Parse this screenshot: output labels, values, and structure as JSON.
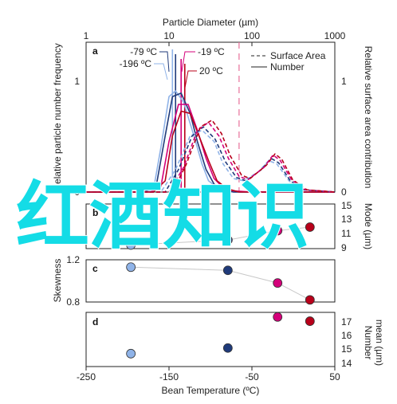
{
  "colors": {
    "axis": "#222222",
    "blue_dark": "#1f3a7a",
    "blue_light": "#8fb3e8",
    "magenta": "#d4007a",
    "red_dark": "#b8001a",
    "overlay_cyan": "#14dce6",
    "dash_pink": "#e8709a"
  },
  "overlay_text": "红酒知识",
  "chart_data": [
    {
      "panel": "a",
      "type": "line",
      "x_scale": "log",
      "xlabel_top": "Particle Diameter (µm)",
      "xlim": [
        1,
        1000
      ],
      "x_ticks": [
        "1",
        "10",
        "100",
        "1000"
      ],
      "ylabel_left": "Relative particle number frequency",
      "ylabel_right": "Relative surface area contribution",
      "y_ticks_left": [
        "0",
        "1"
      ],
      "y_ticks_right": [
        "0",
        "1"
      ],
      "legend": [
        "Surface Area",
        "Number"
      ],
      "legend_placement": "top-right",
      "temperature_labels": [
        "-79 ºC",
        "-196 ºC",
        "-19 ºC",
        "20 ºC"
      ],
      "vertical_marker_x": 70,
      "series": [
        {
          "name": "-196 ºC",
          "kind": "Number",
          "color": "blue_light",
          "x": [
            1,
            5,
            6.5,
            8,
            10,
            12,
            15,
            20,
            25,
            30,
            40,
            50,
            60,
            70,
            100,
            200,
            1000
          ],
          "y": [
            0,
            0,
            0.02,
            0.4,
            0.85,
            0.9,
            0.8,
            0.5,
            0.25,
            0.1,
            0.03,
            0.01,
            0,
            0,
            0,
            0,
            0
          ]
        },
        {
          "name": "-79 ºC",
          "kind": "Number",
          "color": "blue_dark",
          "x": [
            1,
            5,
            7,
            9,
            11,
            14,
            18,
            22,
            28,
            35,
            45,
            60,
            100,
            1000
          ],
          "y": [
            0,
            0,
            0.05,
            0.5,
            0.85,
            0.88,
            0.7,
            0.45,
            0.2,
            0.07,
            0.02,
            0,
            0,
            0
          ]
        },
        {
          "name": "-19 ºC",
          "kind": "Number",
          "color": "magenta",
          "x": [
            1,
            6,
            8,
            10,
            13,
            17,
            22,
            28,
            35,
            45,
            60,
            100,
            1000
          ],
          "y": [
            0,
            0,
            0.05,
            0.45,
            0.78,
            0.78,
            0.55,
            0.3,
            0.12,
            0.04,
            0.01,
            0,
            0
          ]
        },
        {
          "name": "20 ºC",
          "kind": "Number",
          "color": "red_dark",
          "x": [
            1,
            6.5,
            9,
            11,
            14,
            18,
            23,
            30,
            38,
            50,
            70,
            100,
            1000
          ],
          "y": [
            0,
            0,
            0.1,
            0.5,
            0.72,
            0.7,
            0.5,
            0.28,
            0.1,
            0.03,
            0,
            0,
            0
          ]
        },
        {
          "name": "-196 ºC",
          "kind": "Surface Area",
          "color": "blue_light",
          "x": [
            1,
            8,
            12,
            18,
            25,
            35,
            45,
            60,
            80,
            120,
            160,
            200,
            280,
            400,
            1000
          ],
          "y": [
            0,
            0,
            0.2,
            0.5,
            0.55,
            0.45,
            0.25,
            0.12,
            0.1,
            0.18,
            0.28,
            0.25,
            0.1,
            0.02,
            0
          ]
        },
        {
          "name": "-79 ºC",
          "kind": "Surface Area",
          "color": "blue_dark",
          "x": [
            1,
            9,
            13,
            19,
            26,
            36,
            48,
            65,
            85,
            130,
            170,
            210,
            290,
            420,
            1000
          ],
          "y": [
            0,
            0,
            0.2,
            0.5,
            0.58,
            0.47,
            0.27,
            0.13,
            0.1,
            0.2,
            0.3,
            0.26,
            0.1,
            0.02,
            0
          ]
        },
        {
          "name": "-19 ºC",
          "kind": "Surface Area",
          "color": "magenta",
          "x": [
            1,
            10,
            15,
            22,
            30,
            40,
            52,
            70,
            90,
            140,
            180,
            220,
            300,
            440,
            1000
          ],
          "y": [
            0,
            0,
            0.22,
            0.55,
            0.62,
            0.5,
            0.3,
            0.14,
            0.11,
            0.22,
            0.33,
            0.28,
            0.11,
            0.02,
            0
          ]
        },
        {
          "name": "20 ºC",
          "kind": "Surface Area",
          "color": "red_dark",
          "x": [
            1,
            11,
            16,
            24,
            33,
            43,
            55,
            75,
            95,
            150,
            190,
            230,
            310,
            460,
            1000
          ],
          "y": [
            0,
            0,
            0.24,
            0.58,
            0.64,
            0.52,
            0.32,
            0.15,
            0.12,
            0.24,
            0.34,
            0.29,
            0.11,
            0.02,
            0
          ]
        }
      ],
      "spikes": [
        {
          "x": 11,
          "color": "blue_light"
        },
        {
          "x": 12,
          "color": "blue_dark"
        },
        {
          "x": 14,
          "color": "magenta"
        },
        {
          "x": 15.5,
          "color": "red_dark"
        }
      ]
    },
    {
      "panel": "b",
      "type": "scatter",
      "ylabel_right": "Mode (µm)",
      "y_ticks_right": [
        "9",
        "11",
        "13",
        "15"
      ],
      "ylim": [
        9,
        15
      ],
      "points": [
        {
          "x": -196,
          "y": 9.5,
          "color": "blue_light"
        },
        {
          "x": -79,
          "y": 10.2,
          "color": "blue_dark"
        },
        {
          "x": -19,
          "y": 11.5,
          "color": "magenta"
        },
        {
          "x": 20,
          "y": 12.0,
          "color": "red_dark"
        }
      ]
    },
    {
      "panel": "c",
      "type": "scatter",
      "ylabel_left": "Skewness",
      "y_ticks_left": [
        "0.8",
        "1.2"
      ],
      "ylim": [
        0.8,
        1.2
      ],
      "points": [
        {
          "x": -196,
          "y": 1.13,
          "color": "blue_light"
        },
        {
          "x": -79,
          "y": 1.1,
          "color": "blue_dark"
        },
        {
          "x": -19,
          "y": 0.98,
          "color": "magenta"
        },
        {
          "x": 20,
          "y": 0.82,
          "color": "red_dark"
        }
      ]
    },
    {
      "panel": "d",
      "type": "scatter",
      "ylabel_right": "Number mean (µm)",
      "y_ticks_right": [
        "14",
        "15",
        "16",
        "17"
      ],
      "ylim": [
        14,
        17.5
      ],
      "points": [
        {
          "x": -196,
          "y": 14.8,
          "color": "blue_light"
        },
        {
          "x": -79,
          "y": 15.2,
          "color": "blue_dark"
        },
        {
          "x": -19,
          "y": 17.4,
          "color": "magenta"
        },
        {
          "x": 20,
          "y": 17.1,
          "color": "red_dark"
        }
      ]
    }
  ],
  "shared_x_axis": {
    "xlabel": "Bean Temperature (ºC)",
    "xlim": [
      -250,
      50
    ],
    "x_ticks": [
      "-250",
      "-150",
      "-50",
      "50"
    ]
  }
}
